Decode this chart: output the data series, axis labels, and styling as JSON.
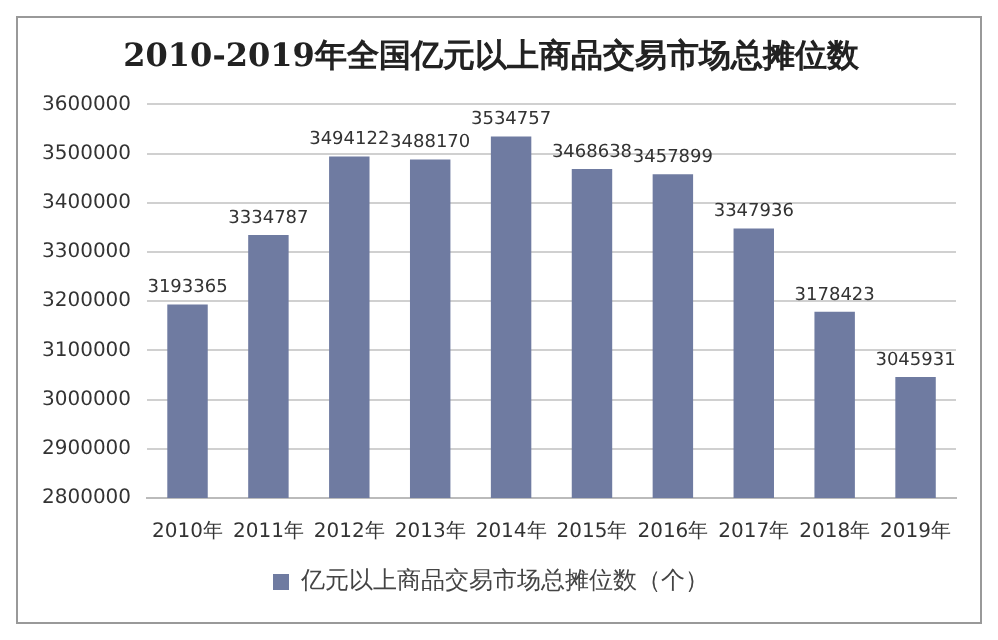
{
  "chart_data": {
    "type": "bar",
    "title": "2010-2019年全国亿元以上商品交易市场总摊位数",
    "categories": [
      "2010年",
      "2011年",
      "2012年",
      "2013年",
      "2014年",
      "2015年",
      "2016年",
      "2017年",
      "2018年",
      "2019年"
    ],
    "series": [
      {
        "name": "亿元以上商品交易市场总摊位数（个）",
        "color": "#6f7ba1",
        "values": [
          3193365,
          3334787,
          3494122,
          3488170,
          3534757,
          3468638,
          3457899,
          3347936,
          3178423,
          3045931
        ]
      }
    ],
    "ylim": [
      2800000,
      3600000
    ],
    "yticks": [
      2800000,
      2900000,
      3000000,
      3100000,
      3200000,
      3300000,
      3400000,
      3500000,
      3600000
    ],
    "grid": "y",
    "legend": "bottom",
    "data_labels": true
  }
}
